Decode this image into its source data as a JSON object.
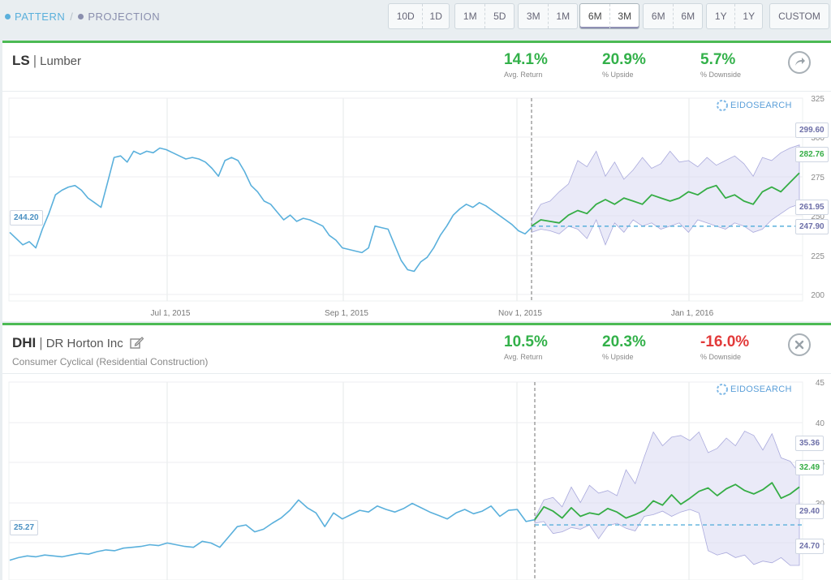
{
  "toolbar": {
    "pattern_label": "PATTERN",
    "separator": "/",
    "projection_label": "PROJECTION",
    "range_groups": [
      {
        "a": "10D",
        "b": "1D"
      },
      {
        "a": "1M",
        "b": "5D"
      },
      {
        "a": "3M",
        "b": "1M"
      },
      {
        "a": "6M",
        "b": "3M"
      },
      {
        "a": "6M",
        "b": "6M"
      },
      {
        "a": "1Y",
        "b": "1Y"
      }
    ],
    "active_group": "6M / 3M",
    "custom_label": "CUSTOM"
  },
  "panels": [
    {
      "ticker": "LS",
      "name": "Lumber",
      "subtitle": "",
      "stats": {
        "avg_return": "14.1%",
        "avg_return_label": "Avg. Return",
        "upside": "20.9%",
        "upside_label": "% Upside",
        "downside": "5.7%",
        "downside_label": "% Downside"
      },
      "action_icon": "arrow-forward-icon",
      "watermark": "EIDOSEARCH",
      "start_price": "244.20",
      "price_tags": [
        "299.60",
        "282.76",
        "261.95",
        "247.90"
      ],
      "x_labels": [
        "Jul 1, 2015",
        "Sep 1, 2015",
        "Nov 1, 2015",
        "Jan 1, 2016"
      ],
      "y_labels": [
        "325",
        "300",
        "275",
        "250",
        "225",
        "200"
      ]
    },
    {
      "ticker": "DHI",
      "name": "DR Horton Inc",
      "subtitle": "Consumer Cyclical (Residential Construction)",
      "stats": {
        "avg_return": "10.5%",
        "avg_return_label": "Avg. Return",
        "upside": "20.3%",
        "upside_label": "% Upside",
        "downside": "-16.0%",
        "downside_label": "% Downside"
      },
      "action_icon": "close-icon",
      "watermark": "EIDOSEARCH",
      "start_price": "25.27",
      "price_tags": [
        "35.36",
        "32.49",
        "29.40",
        "24.70"
      ],
      "x_labels": [],
      "y_labels": [
        "45",
        "40",
        "35",
        "30",
        "25"
      ]
    }
  ],
  "colors": {
    "history": "#5ab0dc",
    "projection": "#35ad45",
    "band": "#d9d9f2",
    "band_line": "#a9a9dc",
    "accent_green": "#4cba54",
    "negative": "#e23a3a"
  },
  "chart_data": [
    {
      "type": "line",
      "title": "LS | Lumber",
      "ylim": [
        200,
        325
      ],
      "history": [
        244,
        240,
        236,
        238,
        234,
        246,
        256,
        268,
        271,
        273,
        274,
        271,
        266,
        263,
        260,
        276,
        292,
        293,
        289,
        296,
        294,
        296,
        295,
        298,
        297,
        295,
        293,
        291,
        292,
        291,
        289,
        285,
        280,
        290,
        292,
        290,
        283,
        274,
        270,
        264,
        262,
        257,
        252,
        255,
        251,
        253,
        252,
        250,
        248,
        242,
        239,
        234,
        233,
        232,
        231,
        234,
        248,
        247,
        246,
        236,
        226,
        220,
        219,
        225,
        228,
        234,
        242,
        248,
        255,
        259,
        262,
        260,
        263,
        261,
        258,
        255,
        252,
        249,
        245,
        243,
        247
      ],
      "projection": [
        248,
        252,
        251,
        250,
        255,
        258,
        256,
        262,
        265,
        262,
        266,
        264,
        262,
        268,
        266,
        264,
        266,
        270,
        268,
        272,
        274,
        266,
        268,
        264,
        262,
        270,
        273,
        270,
        276,
        282
      ],
      "band_high": [
        252,
        262,
        264,
        270,
        275,
        290,
        286,
        296,
        280,
        289,
        278,
        284,
        292,
        285,
        288,
        296,
        289,
        290,
        286,
        292,
        287,
        290,
        293,
        288,
        280,
        292,
        290,
        295,
        298,
        300
      ],
      "band_low": [
        244,
        246,
        245,
        243,
        248,
        246,
        240,
        252,
        236,
        250,
        244,
        252,
        248,
        250,
        246,
        248,
        250,
        244,
        252,
        250,
        248,
        246,
        250,
        248,
        244,
        246,
        252,
        256,
        260,
        262
      ],
      "reference_level": 247.9
    },
    {
      "type": "line",
      "title": "DHI | DR Horton Inc",
      "ylim": [
        25,
        45
      ],
      "history": [
        25.3,
        25.6,
        25.8,
        25.7,
        25.9,
        25.8,
        25.7,
        25.9,
        26.1,
        26.0,
        26.3,
        26.5,
        26.4,
        26.7,
        26.8,
        26.9,
        27.1,
        27.0,
        27.3,
        27.1,
        26.9,
        26.8,
        27.5,
        27.3,
        26.8,
        28.0,
        29.2,
        29.4,
        28.6,
        28.9,
        29.6,
        30.2,
        31.1,
        32.3,
        31.4,
        30.8,
        29.2,
        30.8,
        30.1,
        30.6,
        31.1,
        30.9,
        31.6,
        31.2,
        30.9,
        31.3,
        31.9,
        31.4,
        30.9,
        30.5,
        30.1,
        30.8,
        31.2,
        30.7,
        31.0,
        31.6,
        30.4,
        31.1,
        31.2,
        29.8,
        30.0
      ],
      "projection": [
        30.0,
        31.5,
        31.0,
        30.2,
        31.4,
        30.4,
        30.8,
        30.6,
        31.3,
        30.9,
        30.2,
        30.6,
        31.1,
        32.2,
        31.7,
        32.9,
        31.8,
        32.5,
        33.3,
        33.7,
        32.8,
        33.6,
        34.1,
        33.4,
        33.0,
        33.5,
        34.3,
        32.5,
        33.0,
        33.8
      ],
      "band_high": [
        30.2,
        32.3,
        32.6,
        31.5,
        33.8,
        32.0,
        34.0,
        33.1,
        33.4,
        32.8,
        35.8,
        34.2,
        37.3,
        40.2,
        38.6,
        39.6,
        39.8,
        39.2,
        40.2,
        37.8,
        38.3,
        39.5,
        38.6,
        40.3,
        39.8,
        38.1,
        40.0,
        37.2,
        36.8,
        35.4
      ],
      "band_low": [
        29.6,
        29.8,
        28.4,
        28.6,
        29.1,
        28.9,
        29.4,
        27.8,
        29.3,
        29.6,
        29.0,
        28.7,
        30.4,
        30.6,
        31.0,
        30.4,
        30.9,
        31.2,
        30.8,
        26.4,
        25.9,
        26.2,
        25.6,
        25.9,
        24.8,
        25.2,
        25.0,
        25.6,
        24.7,
        24.7
      ],
      "reference_level": 29.4
    }
  ]
}
